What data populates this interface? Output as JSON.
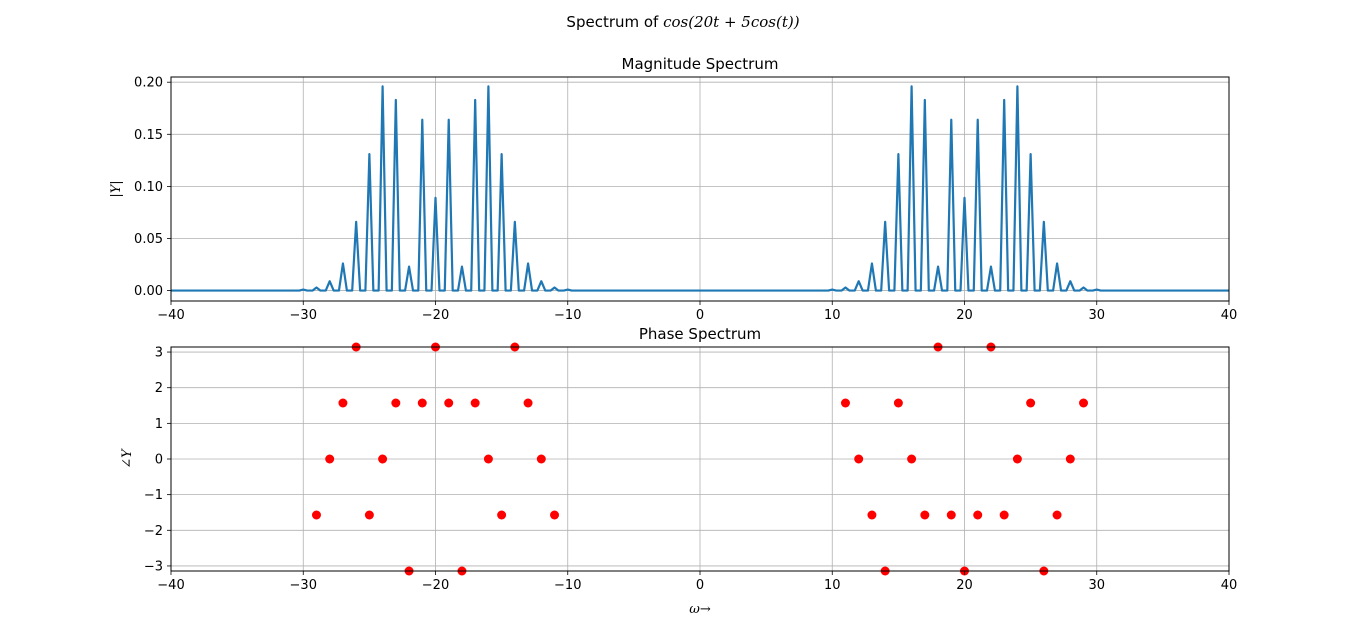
{
  "figure": {
    "suptitle_prefix": "Spectrum of ",
    "suptitle_math": "cos(20t + 5cos(t))"
  },
  "chart_data": [
    {
      "type": "line",
      "title": "Magnitude Spectrum",
      "xlabel": "",
      "ylabel": "|Y|",
      "xlim": [
        -40,
        40
      ],
      "ylim": [
        -0.01,
        0.205
      ],
      "xticks": [
        -40,
        -30,
        -20,
        -10,
        0,
        10,
        20,
        30,
        40
      ],
      "xtick_labels": [
        "−40",
        "−30",
        "−20",
        "−10",
        "0",
        "10",
        "20",
        "30",
        "40"
      ],
      "yticks": [
        0.0,
        0.05,
        0.1,
        0.15,
        0.2
      ],
      "ytick_labels": [
        "0.00",
        "0.05",
        "0.10",
        "0.15",
        "0.20"
      ],
      "grid": true,
      "line_color": "#1f77b4",
      "peaks": {
        "x": [
          -30,
          -29,
          -28,
          -27,
          -26,
          -25,
          -24,
          -23,
          -22,
          -21,
          -20,
          -19,
          -18,
          -17,
          -16,
          -15,
          -14,
          -13,
          -12,
          -11,
          -10,
          10,
          11,
          12,
          13,
          14,
          15,
          16,
          17,
          18,
          19,
          20,
          21,
          22,
          23,
          24,
          25,
          26,
          27,
          28,
          29,
          30
        ],
        "y": [
          0.001,
          0.003,
          0.009,
          0.026,
          0.066,
          0.131,
          0.196,
          0.183,
          0.023,
          0.164,
          0.089,
          0.164,
          0.023,
          0.183,
          0.196,
          0.131,
          0.066,
          0.026,
          0.009,
          0.003,
          0.001,
          0.001,
          0.003,
          0.009,
          0.026,
          0.066,
          0.131,
          0.196,
          0.183,
          0.023,
          0.164,
          0.089,
          0.164,
          0.023,
          0.183,
          0.196,
          0.131,
          0.066,
          0.026,
          0.009,
          0.003,
          0.001
        ]
      }
    },
    {
      "type": "scatter",
      "title": "Phase Spectrum",
      "xlabel": "ω→",
      "ylabel": "∠Y",
      "xlim": [
        -40,
        40
      ],
      "ylim": [
        -3.14159,
        3.14159
      ],
      "xticks": [
        -40,
        -30,
        -20,
        -10,
        0,
        10,
        20,
        30,
        40
      ],
      "xtick_labels": [
        "−40",
        "−30",
        "−20",
        "−10",
        "0",
        "10",
        "20",
        "30",
        "40"
      ],
      "yticks": [
        -3,
        -2,
        -1,
        0,
        1,
        2,
        3
      ],
      "ytick_labels": [
        "−3",
        "−2",
        "−1",
        "0",
        "1",
        "2",
        "3"
      ],
      "grid": true,
      "marker_color": "#ff0000",
      "points": {
        "x": [
          -29,
          -28,
          -27,
          -26,
          -25,
          -24,
          -23,
          -22,
          -21,
          -20,
          -19,
          -18,
          -17,
          -16,
          -15,
          -14,
          -13,
          -12,
          -11,
          11,
          12,
          13,
          14,
          15,
          16,
          17,
          18,
          19,
          20,
          21,
          22,
          23,
          24,
          25,
          26,
          27,
          28,
          29
        ],
        "y": [
          -1.5708,
          0,
          1.5708,
          3.1416,
          -1.5708,
          0,
          1.5708,
          -3.1416,
          1.5708,
          3.1416,
          1.5708,
          -3.1416,
          1.5708,
          0,
          -1.5708,
          3.1416,
          1.5708,
          0,
          -1.5708,
          1.5708,
          0,
          -1.5708,
          -3.1416,
          1.5708,
          0,
          -1.5708,
          3.1416,
          -1.5708,
          -3.1416,
          -1.5708,
          3.1416,
          -1.5708,
          0,
          1.5708,
          -3.1416,
          -1.5708,
          0,
          1.5708
        ]
      }
    }
  ]
}
